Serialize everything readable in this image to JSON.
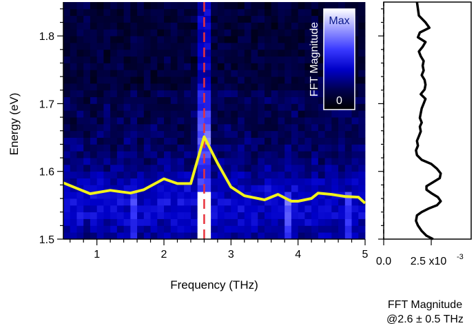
{
  "chart_data": [
    {
      "type": "heatmap",
      "xlabel": "Frequency (THz)",
      "ylabel": "Energy (eV)",
      "xlim": [
        0.5,
        5.0
      ],
      "ylim": [
        1.5,
        1.85
      ],
      "xticks": [
        "1",
        "2",
        "3",
        "4",
        "5"
      ],
      "yticks": [
        "1.5",
        "1.6",
        "1.7",
        "1.8"
      ],
      "colorbar": {
        "title": "FFT Magnitude",
        "max_label": "Max",
        "min_label": "0"
      },
      "colormap": [
        "#000000",
        "#000050",
        "#0000c8",
        "#3a3aff",
        "#9a9aff",
        "#ffffff"
      ],
      "marker_line": {
        "x": 2.6,
        "color": "#e8323c",
        "style": "dashed"
      },
      "peak_line": {
        "color": "#f2f21a",
        "x": [
          0.5,
          0.7,
          0.9,
          1.2,
          1.5,
          1.7,
          2.0,
          2.2,
          2.4,
          2.6,
          2.8,
          3.0,
          3.2,
          3.5,
          3.7,
          3.9,
          4.0,
          4.2,
          4.3,
          4.5,
          4.7,
          4.9,
          5.0
        ],
        "y": [
          1.583,
          1.575,
          1.567,
          1.572,
          1.568,
          1.573,
          1.589,
          1.582,
          1.582,
          1.651,
          1.612,
          1.577,
          1.564,
          1.558,
          1.566,
          1.556,
          1.556,
          1.56,
          1.568,
          1.566,
          1.563,
          1.562,
          1.553
        ]
      }
    },
    {
      "type": "line",
      "xlabel_line1": "FFT Magnitude",
      "xlabel_line2": "@2.6 ± 0.5 THz",
      "xticks": [
        "0.0",
        "2.5 x10"
      ],
      "xtick_exponent": "-3",
      "xlim": [
        0.0,
        0.0046
      ],
      "ylim": [
        1.5,
        1.85
      ],
      "baseline": {
        "x": 0.0,
        "style": "dashed"
      },
      "x": [
        0.0026,
        0.00225,
        0.002,
        0.0018,
        0.0017,
        0.00175,
        0.002,
        0.00235,
        0.0028,
        0.003,
        0.00285,
        0.0025,
        0.00225,
        0.00225,
        0.0026,
        0.00295,
        0.003,
        0.0028,
        0.0025,
        0.002,
        0.00175,
        0.0017,
        0.0018,
        0.00175,
        0.00185,
        0.00195,
        0.0019,
        0.002,
        0.0019,
        0.00195,
        0.002,
        0.0021,
        0.0022,
        0.00195,
        0.00215,
        0.0022,
        0.00215,
        0.002,
        0.0021,
        0.00205,
        0.0021,
        0.00195,
        0.00185,
        0.00205,
        0.0022,
        0.0018,
        0.0019,
        0.0024,
        0.0022,
        0.00185,
        0.0018,
        0.00175
      ],
      "y": [
        1.5,
        1.505,
        1.512,
        1.52,
        1.527,
        1.535,
        1.54,
        1.545,
        1.55,
        1.556,
        1.562,
        1.568,
        1.573,
        1.578,
        1.584,
        1.59,
        1.597,
        1.604,
        1.611,
        1.617,
        1.624,
        1.631,
        1.638,
        1.645,
        1.652,
        1.659,
        1.666,
        1.672,
        1.679,
        1.686,
        1.693,
        1.7,
        1.707,
        1.714,
        1.721,
        1.728,
        1.735,
        1.742,
        1.749,
        1.756,
        1.763,
        1.77,
        1.777,
        1.784,
        1.791,
        1.798,
        1.805,
        1.812,
        1.82,
        1.83,
        1.84,
        1.85
      ]
    }
  ]
}
